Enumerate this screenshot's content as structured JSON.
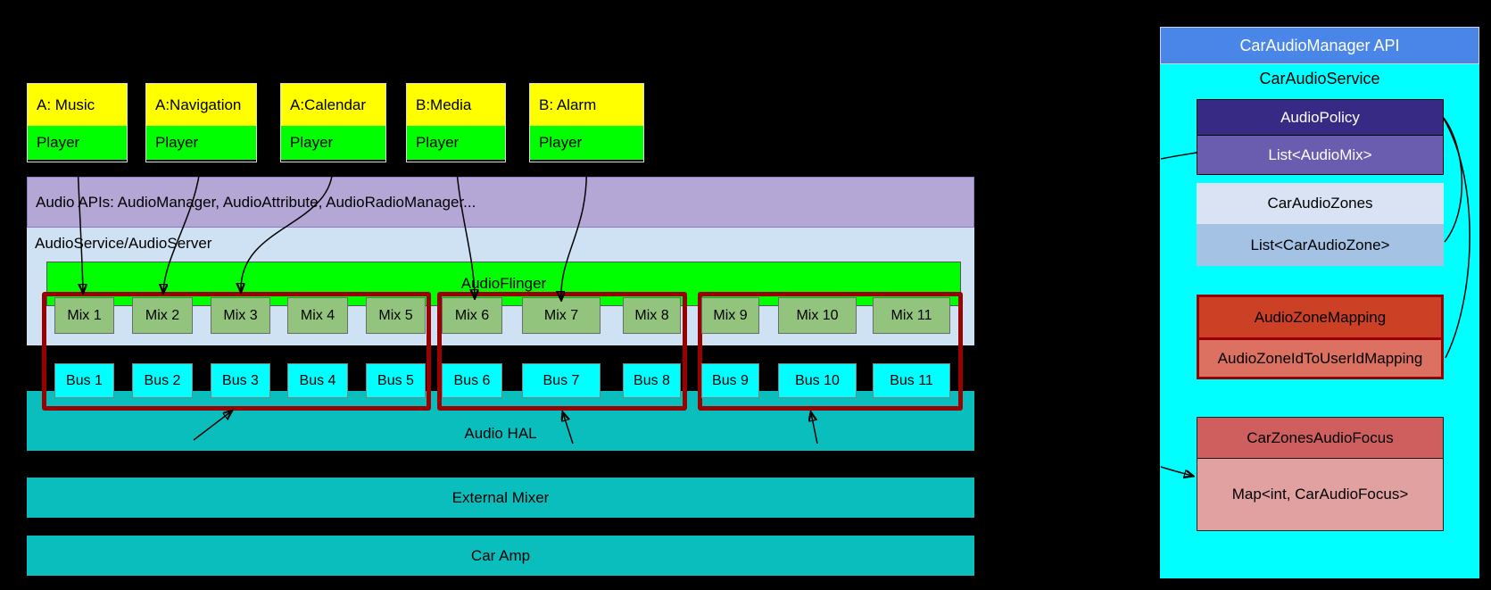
{
  "apps": [
    {
      "title": "A: Music",
      "player": "Player"
    },
    {
      "title": "A:Navigation",
      "player": "Player"
    },
    {
      "title": "A:Calendar",
      "player": "Player"
    },
    {
      "title": "B:Media",
      "player": "Player"
    },
    {
      "title": "B: Alarm",
      "player": "Player"
    }
  ],
  "android": {
    "audio_apis_label": "Audio APIs: AudioManager, AudioAttribute, AudioRadioManager...",
    "audio_service_label": "AudioService/AudioServer",
    "audio_flinger_label": "AudioFlinger",
    "mixes": [
      "Mix 1",
      "Mix 2",
      "Mix 3",
      "Mix 4",
      "Mix 5",
      "Mix 6",
      "Mix 7",
      "Mix 8",
      "Mix 9",
      "Mix 10",
      "Mix 11"
    ],
    "buses": [
      "Bus 1",
      "Bus 2",
      "Bus 3",
      "Bus 4",
      "Bus 5",
      "Bus 6",
      "Bus 7",
      "Bus 8",
      "Bus 9",
      "Bus 10",
      "Bus 11"
    ]
  },
  "hardware": {
    "audio_hal_label": "Audio HAL",
    "external_mixer_label": "External Mixer",
    "car_amp_label": "Car Amp"
  },
  "car_panel": {
    "api_header": "CarAudioManager API",
    "service_title": "CarAudioService",
    "audio_policy": {
      "header": "AudioPolicy",
      "body": "List<AudioMix>"
    },
    "car_audio_zones": {
      "header": "CarAudioZones",
      "body": "List<CarAudioZone>"
    },
    "audio_zone_mapping": {
      "header": "AudioZoneMapping",
      "body": "AudioZoneIdToUserIdMapping"
    },
    "car_zones_audio_focus": {
      "header": "CarZonesAudioFocus",
      "body": "Map<int, CarAudioFocus>"
    }
  },
  "colors": {
    "app_title_bg": "#ffff00",
    "app_player_bg": "#00ff00",
    "audio_apis_bg": "#b4a7d6",
    "audio_service_bg": "#cfe2f3",
    "audio_flinger_bg": "#00ff00",
    "mix_bg": "#93c47d",
    "bus_bg": "#00ffff",
    "zone_group_border": "#990000",
    "hal_band_bg": "#0abebe",
    "panel_bg": "#00ffff",
    "api_header_bg": "#4a86e8",
    "policy_header_bg": "#362a84",
    "policy_body_bg": "#6a5caf",
    "zones_header_bg": "#dae3f3",
    "zones_body_bg": "#a4c2e4",
    "mapping_header_bg": "#cc4125",
    "mapping_body_bg": "#dd7161",
    "focus_header_bg": "#cf5f5f",
    "focus_body_bg": "#e2a1a1"
  }
}
